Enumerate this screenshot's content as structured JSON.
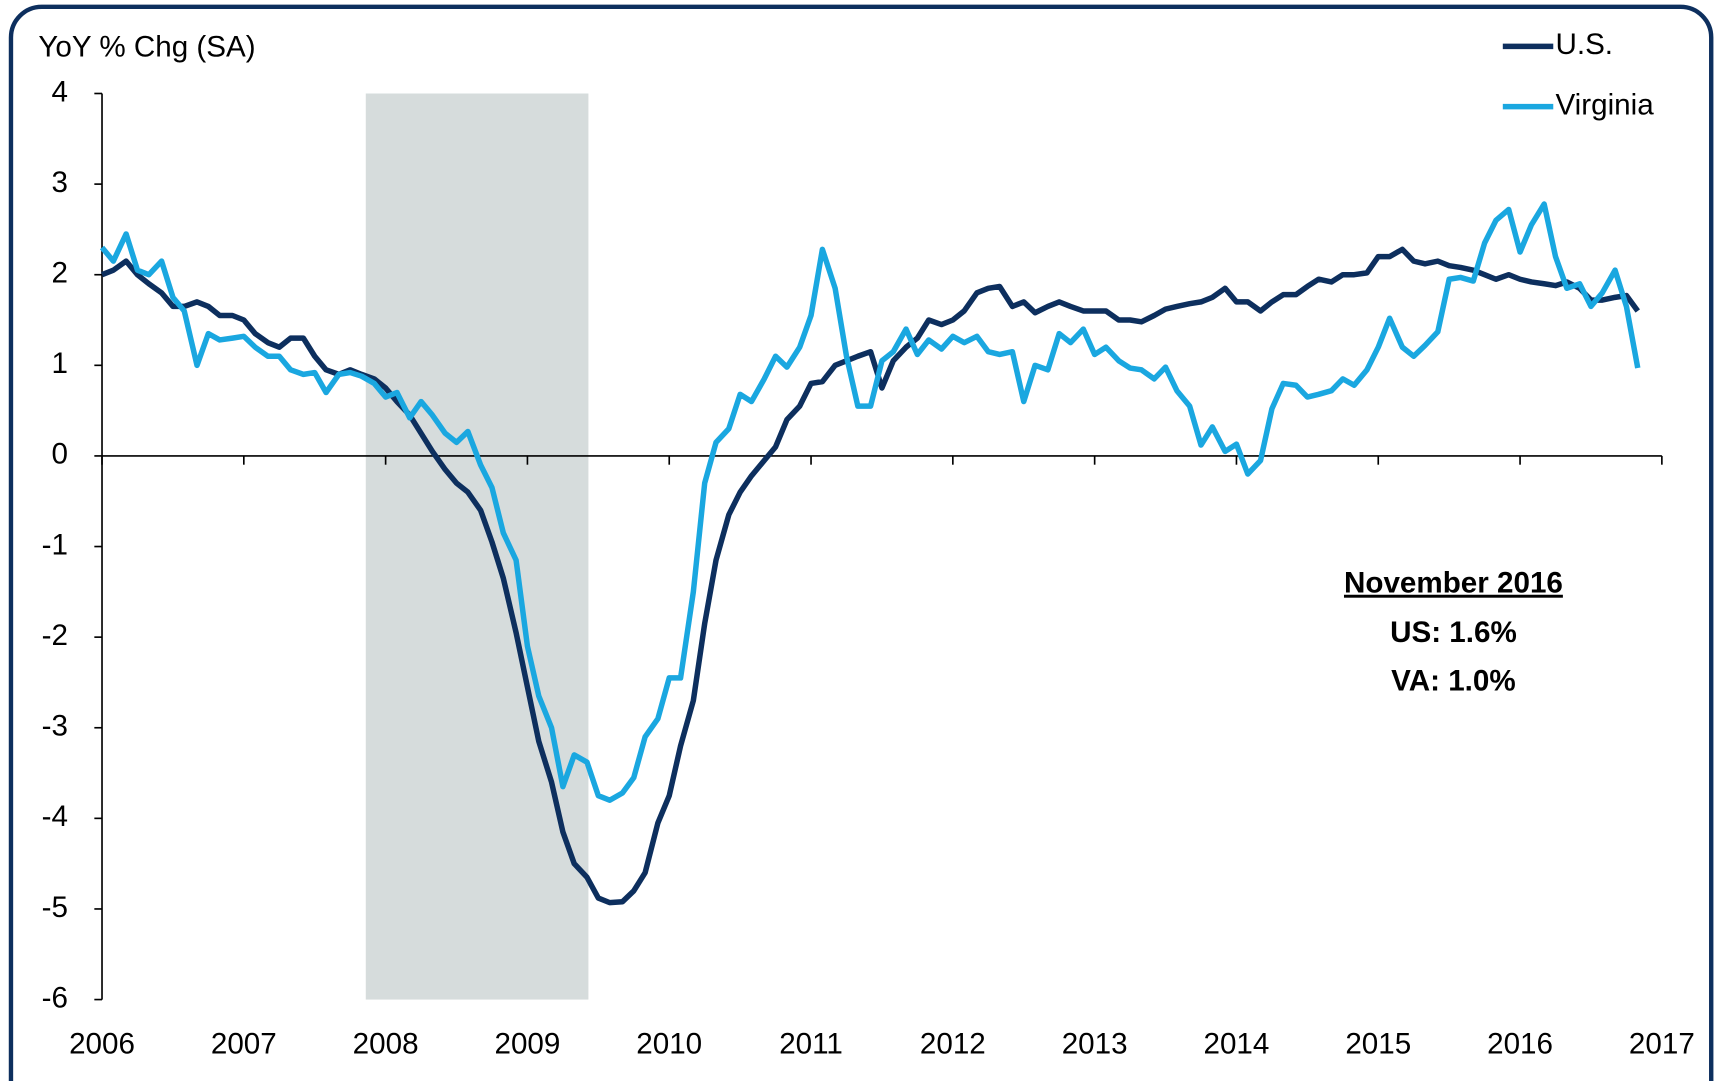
{
  "chart_data": {
    "type": "line",
    "title": "YoY % Chg (SA)",
    "x": [
      2006,
      2006.08,
      2006.17,
      2006.25,
      2006.33,
      2006.42,
      2006.5,
      2006.58,
      2006.67,
      2006.75,
      2006.83,
      2006.92,
      2007,
      2007.08,
      2007.17,
      2007.25,
      2007.33,
      2007.42,
      2007.5,
      2007.58,
      2007.67,
      2007.75,
      2007.83,
      2007.92,
      2008,
      2008.08,
      2008.17,
      2008.25,
      2008.33,
      2008.42,
      2008.5,
      2008.58,
      2008.67,
      2008.75,
      2008.83,
      2008.92,
      2009,
      2009.08,
      2009.17,
      2009.25,
      2009.33,
      2009.42,
      2009.5,
      2009.58,
      2009.67,
      2009.75,
      2009.83,
      2009.92,
      2010,
      2010.08,
      2010.17,
      2010.25,
      2010.33,
      2010.42,
      2010.5,
      2010.58,
      2010.67,
      2010.75,
      2010.83,
      2010.92,
      2011,
      2011.08,
      2011.17,
      2011.25,
      2011.33,
      2011.42,
      2011.5,
      2011.58,
      2011.67,
      2011.75,
      2011.83,
      2011.92,
      2012,
      2012.08,
      2012.17,
      2012.25,
      2012.33,
      2012.42,
      2012.5,
      2012.58,
      2012.67,
      2012.75,
      2012.83,
      2012.92,
      2013,
      2013.08,
      2013.17,
      2013.25,
      2013.33,
      2013.42,
      2013.5,
      2013.58,
      2013.67,
      2013.75,
      2013.83,
      2013.92,
      2014,
      2014.08,
      2014.17,
      2014.25,
      2014.33,
      2014.42,
      2014.5,
      2014.58,
      2014.67,
      2014.75,
      2014.83,
      2014.92,
      2015,
      2015.08,
      2015.17,
      2015.25,
      2015.33,
      2015.42,
      2015.5,
      2015.58,
      2015.67,
      2015.75,
      2015.83,
      2015.92,
      2016,
      2016.08,
      2016.17,
      2016.25,
      2016.33,
      2016.42,
      2016.5,
      2016.58,
      2016.67,
      2016.75,
      2016.83
    ],
    "series": [
      {
        "name": "U.S.",
        "color": "#0d2f5e",
        "values": [
          2.0,
          2.05,
          2.15,
          2.0,
          1.9,
          1.8,
          1.65,
          1.65,
          1.7,
          1.65,
          1.55,
          1.55,
          1.5,
          1.35,
          1.25,
          1.2,
          1.3,
          1.3,
          1.1,
          0.95,
          0.9,
          0.95,
          0.9,
          0.85,
          0.75,
          0.6,
          0.45,
          0.25,
          0.05,
          -0.15,
          -0.3,
          -0.4,
          -0.6,
          -0.95,
          -1.35,
          -1.95,
          -2.55,
          -3.15,
          -3.6,
          -4.15,
          -4.5,
          -4.65,
          -4.88,
          -4.93,
          -4.92,
          -4.8,
          -4.6,
          -4.05,
          -3.75,
          -3.2,
          -2.7,
          -1.85,
          -1.15,
          -0.65,
          -0.4,
          -0.22,
          -0.05,
          0.1,
          0.4,
          0.55,
          0.8,
          0.82,
          1.0,
          1.05,
          1.1,
          1.15,
          0.75,
          1.05,
          1.2,
          1.3,
          1.5,
          1.45,
          1.5,
          1.6,
          1.8,
          1.85,
          1.87,
          1.65,
          1.7,
          1.58,
          1.65,
          1.7,
          1.65,
          1.6,
          1.6,
          1.6,
          1.5,
          1.5,
          1.48,
          1.55,
          1.62,
          1.65,
          1.68,
          1.7,
          1.75,
          1.85,
          1.7,
          1.7,
          1.6,
          1.7,
          1.78,
          1.78,
          1.87,
          1.95,
          1.92,
          2.0,
          2.0,
          2.02,
          2.2,
          2.2,
          2.28,
          2.15,
          2.12,
          2.15,
          2.1,
          2.08,
          2.05,
          2.0,
          1.95,
          2.0,
          1.95,
          1.92,
          1.9,
          1.88,
          1.92,
          1.85,
          1.72,
          1.72,
          1.75,
          1.77,
          1.6
        ]
      },
      {
        "name": "Virginia",
        "color": "#1aa7e0",
        "values": [
          2.3,
          2.15,
          2.45,
          2.05,
          2.0,
          2.15,
          1.75,
          1.6,
          1.0,
          1.35,
          1.28,
          1.3,
          1.32,
          1.2,
          1.1,
          1.1,
          0.95,
          0.9,
          0.92,
          0.7,
          0.9,
          0.92,
          0.88,
          0.8,
          0.65,
          0.7,
          0.42,
          0.6,
          0.45,
          0.25,
          0.15,
          0.27,
          -0.1,
          -0.35,
          -0.85,
          -1.15,
          -2.1,
          -2.65,
          -3.0,
          -3.65,
          -3.3,
          -3.38,
          -3.75,
          -3.8,
          -3.72,
          -3.55,
          -3.1,
          -2.9,
          -2.45,
          -2.45,
          -1.5,
          -0.3,
          0.15,
          0.3,
          0.68,
          0.6,
          0.85,
          1.1,
          0.98,
          1.2,
          1.55,
          2.28,
          1.85,
          1.1,
          0.55,
          0.55,
          1.05,
          1.15,
          1.4,
          1.12,
          1.28,
          1.18,
          1.32,
          1.25,
          1.32,
          1.15,
          1.12,
          1.15,
          0.6,
          1.0,
          0.95,
          1.35,
          1.25,
          1.4,
          1.12,
          1.2,
          1.05,
          0.97,
          0.95,
          0.85,
          0.98,
          0.72,
          0.55,
          0.12,
          0.32,
          0.05,
          0.13,
          -0.2,
          -0.05,
          0.52,
          0.8,
          0.78,
          0.65,
          0.68,
          0.72,
          0.85,
          0.78,
          0.95,
          1.2,
          1.52,
          1.2,
          1.1,
          1.22,
          1.37,
          1.95,
          1.97,
          1.93,
          2.35,
          2.6,
          2.72,
          2.25,
          2.55,
          2.78,
          2.2,
          1.85,
          1.9,
          1.65,
          1.8,
          2.05,
          1.65,
          0.97
        ]
      }
    ],
    "xlim": [
      2006,
      2017
    ],
    "xticks": [
      2006,
      2007,
      2008,
      2009,
      2010,
      2011,
      2012,
      2013,
      2014,
      2015,
      2016,
      2017
    ],
    "ylim": [
      -6,
      4
    ],
    "yticks": [
      -6,
      -5,
      -4,
      -3,
      -2,
      -1,
      0,
      1,
      2,
      3,
      4
    ],
    "shaded_region": {
      "xlim": [
        2007.86,
        2009.43
      ],
      "color": "#d6dcdc"
    },
    "legend": "top-right",
    "annotation": {
      "heading": "November 2016",
      "lines": [
        "US: 1.6%",
        "VA: 1.0%"
      ]
    }
  }
}
